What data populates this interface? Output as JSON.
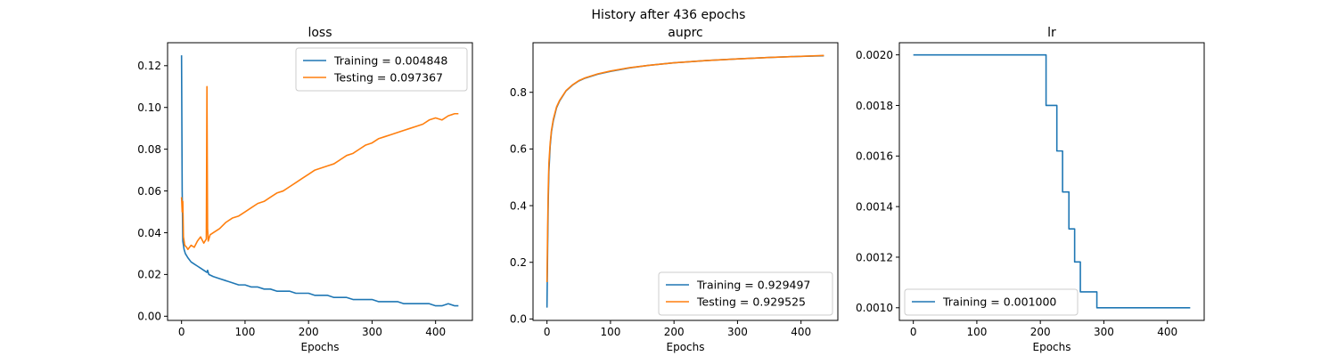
{
  "figure": {
    "title": "History after 436 epochs"
  },
  "colors": {
    "training": "#1f77b4",
    "testing": "#ff7f0e"
  },
  "chart_data": [
    {
      "type": "line",
      "title": "loss",
      "xlabel": "Epochs",
      "ylabel": "",
      "xlim": [
        -22,
        458
      ],
      "ylim": [
        -0.002,
        0.131
      ],
      "xticks": [
        0,
        100,
        200,
        300,
        400
      ],
      "yticks": [
        0.0,
        0.02,
        0.04,
        0.06,
        0.08,
        0.1,
        0.12
      ],
      "ytick_decimals": 2,
      "legend_loc": "top-right",
      "grid": false,
      "series": [
        {
          "name": "Training = 0.004848",
          "color": "#1f77b4",
          "x": [
            0,
            1,
            2,
            4,
            6,
            8,
            10,
            15,
            20,
            25,
            30,
            35,
            40,
            41,
            43,
            50,
            60,
            70,
            80,
            90,
            100,
            110,
            120,
            130,
            140,
            150,
            160,
            170,
            180,
            190,
            200,
            210,
            220,
            230,
            240,
            250,
            260,
            270,
            280,
            290,
            300,
            310,
            320,
            330,
            340,
            350,
            360,
            370,
            380,
            390,
            400,
            410,
            420,
            430,
            436
          ],
          "y": [
            0.125,
            0.06,
            0.036,
            0.032,
            0.03,
            0.029,
            0.028,
            0.026,
            0.025,
            0.024,
            0.023,
            0.022,
            0.021,
            0.022,
            0.02,
            0.019,
            0.018,
            0.017,
            0.016,
            0.015,
            0.015,
            0.014,
            0.014,
            0.013,
            0.013,
            0.012,
            0.012,
            0.012,
            0.011,
            0.011,
            0.011,
            0.01,
            0.01,
            0.01,
            0.009,
            0.009,
            0.009,
            0.008,
            0.008,
            0.008,
            0.008,
            0.007,
            0.007,
            0.007,
            0.007,
            0.006,
            0.006,
            0.006,
            0.006,
            0.006,
            0.005,
            0.005,
            0.006,
            0.005,
            0.005
          ]
        },
        {
          "name": "Testing = 0.097367",
          "color": "#ff7f0e",
          "x": [
            0,
            1,
            2,
            3,
            5,
            8,
            10,
            15,
            20,
            25,
            30,
            35,
            39,
            40,
            41,
            42,
            45,
            50,
            60,
            70,
            80,
            90,
            100,
            110,
            120,
            130,
            140,
            150,
            160,
            170,
            180,
            190,
            200,
            210,
            220,
            230,
            240,
            250,
            260,
            270,
            280,
            290,
            300,
            310,
            320,
            330,
            340,
            350,
            360,
            370,
            380,
            390,
            400,
            410,
            420,
            430,
            436
          ],
          "y": [
            0.057,
            0.05,
            0.055,
            0.038,
            0.034,
            0.033,
            0.032,
            0.034,
            0.033,
            0.036,
            0.038,
            0.035,
            0.037,
            0.11,
            0.042,
            0.036,
            0.039,
            0.04,
            0.042,
            0.045,
            0.047,
            0.048,
            0.05,
            0.052,
            0.054,
            0.055,
            0.057,
            0.059,
            0.06,
            0.062,
            0.064,
            0.066,
            0.068,
            0.07,
            0.071,
            0.072,
            0.073,
            0.075,
            0.077,
            0.078,
            0.08,
            0.082,
            0.083,
            0.085,
            0.086,
            0.087,
            0.088,
            0.089,
            0.09,
            0.091,
            0.092,
            0.094,
            0.095,
            0.094,
            0.096,
            0.097,
            0.097
          ]
        }
      ]
    },
    {
      "type": "line",
      "title": "auprc",
      "xlabel": "Epochs",
      "ylabel": "",
      "xlim": [
        -22,
        458
      ],
      "ylim": [
        -0.005,
        0.975
      ],
      "xticks": [
        0,
        100,
        200,
        300,
        400
      ],
      "yticks": [
        0.0,
        0.2,
        0.4,
        0.6,
        0.8
      ],
      "ytick_decimals": 1,
      "legend_loc": "bottom-right",
      "grid": false,
      "series": [
        {
          "name": "Training = 0.929497",
          "color": "#1f77b4",
          "x": [
            0,
            1,
            2,
            3,
            5,
            7,
            10,
            15,
            20,
            30,
            40,
            50,
            60,
            80,
            100,
            130,
            160,
            200,
            250,
            300,
            350,
            400,
            436
          ],
          "y": [
            0.04,
            0.25,
            0.42,
            0.52,
            0.61,
            0.66,
            0.7,
            0.745,
            0.77,
            0.805,
            0.825,
            0.84,
            0.85,
            0.864,
            0.874,
            0.886,
            0.895,
            0.904,
            0.912,
            0.918,
            0.923,
            0.927,
            0.929
          ]
        },
        {
          "name": "Testing = 0.929525",
          "color": "#ff7f0e",
          "x": [
            0,
            1,
            2,
            3,
            5,
            7,
            10,
            15,
            20,
            30,
            40,
            50,
            60,
            80,
            100,
            130,
            160,
            200,
            250,
            300,
            350,
            400,
            436
          ],
          "y": [
            0.13,
            0.32,
            0.46,
            0.55,
            0.62,
            0.665,
            0.705,
            0.748,
            0.772,
            0.806,
            0.826,
            0.841,
            0.851,
            0.865,
            0.875,
            0.887,
            0.895,
            0.904,
            0.912,
            0.918,
            0.923,
            0.927,
            0.93
          ]
        }
      ]
    },
    {
      "type": "line",
      "title": "lr",
      "xlabel": "Epochs",
      "ylabel": "",
      "xlim": [
        -22,
        458
      ],
      "ylim": [
        0.00095,
        0.002048
      ],
      "xticks": [
        0,
        100,
        200,
        300,
        400
      ],
      "yticks": [
        0.001,
        0.0012,
        0.0014,
        0.0016,
        0.0018,
        0.002
      ],
      "ytick_decimals": 4,
      "legend_loc": "bottom-left",
      "grid": false,
      "series": [
        {
          "name": "Training = 0.001000",
          "color": "#1f77b4",
          "x": [
            0,
            209,
            209,
            226,
            226,
            235,
            235,
            245,
            245,
            254,
            254,
            263,
            263,
            275,
            275,
            289,
            289,
            436
          ],
          "y": [
            0.002,
            0.002,
            0.0018,
            0.0018,
            0.00162,
            0.00162,
            0.001458,
            0.001458,
            0.001312,
            0.001312,
            0.001181,
            0.001181,
            0.001063,
            0.001063,
            0.001063,
            0.001063,
            0.001,
            0.001
          ]
        }
      ]
    }
  ]
}
